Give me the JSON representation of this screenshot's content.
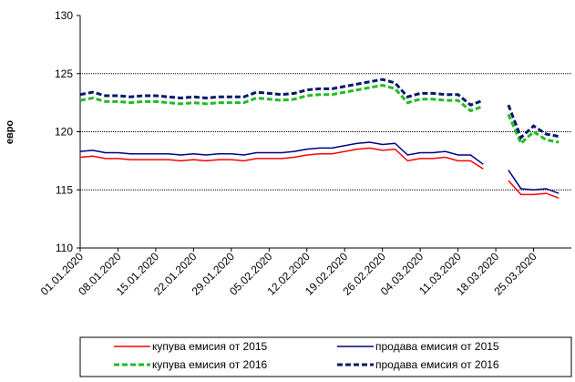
{
  "chart_data": {
    "type": "line",
    "y_label": "евро",
    "categories": [
      "01.01.2020",
      null,
      null,
      "08.01.2020",
      null,
      null,
      "15.01.2020",
      null,
      null,
      "22.01.2020",
      null,
      null,
      "29.01.2020",
      null,
      null,
      "05.02.2020",
      null,
      null,
      "12.02.2020",
      null,
      null,
      "19.02.2020",
      null,
      null,
      "26.02.2020",
      null,
      null,
      "04.03.2020",
      null,
      null,
      "11.03.2020",
      null,
      null,
      "18.03.2020",
      null,
      null,
      "25.03.2020",
      null,
      null
    ],
    "series": [
      {
        "name": "купува емисия от 2015",
        "color": "#ff0000",
        "dashed": false,
        "values": [
          117.8,
          117.9,
          117.7,
          117.7,
          117.6,
          117.6,
          117.6,
          117.6,
          117.5,
          117.6,
          117.5,
          117.6,
          117.6,
          117.5,
          117.7,
          117.7,
          117.7,
          117.8,
          118.0,
          118.1,
          118.1,
          118.3,
          118.5,
          118.6,
          118.4,
          118.5,
          117.5,
          117.7,
          117.7,
          117.8,
          117.5,
          117.5,
          116.8,
          null,
          115.8,
          114.6,
          114.6,
          114.7,
          114.3
        ]
      },
      {
        "name": "продава емисия от 2015",
        "color": "#000080",
        "dashed": false,
        "values": [
          118.3,
          118.4,
          118.2,
          118.2,
          118.1,
          118.1,
          118.1,
          118.1,
          118.0,
          118.1,
          118.0,
          118.1,
          118.1,
          118.0,
          118.2,
          118.2,
          118.2,
          118.3,
          118.5,
          118.6,
          118.6,
          118.8,
          119.0,
          119.1,
          118.9,
          119.0,
          118.0,
          118.2,
          118.2,
          118.3,
          118.0,
          118.0,
          117.2,
          null,
          116.7,
          115.1,
          115.0,
          115.1,
          114.7
        ]
      },
      {
        "name": "купува емисия от 2016",
        "color": "#22bb22",
        "dashed": true,
        "values": [
          122.7,
          122.9,
          122.6,
          122.6,
          122.5,
          122.6,
          122.6,
          122.5,
          122.4,
          122.5,
          122.4,
          122.5,
          122.5,
          122.5,
          122.9,
          122.8,
          122.7,
          122.8,
          123.1,
          123.2,
          123.2,
          123.4,
          123.6,
          123.8,
          124.0,
          123.7,
          122.5,
          122.8,
          122.8,
          122.7,
          122.7,
          121.8,
          122.2,
          null,
          121.5,
          119.0,
          120.0,
          119.3,
          119.1
        ]
      },
      {
        "name": "продава емисия от 2016",
        "color": "#001a66",
        "dashed": true,
        "values": [
          123.2,
          123.4,
          123.1,
          123.1,
          123.0,
          123.1,
          123.1,
          123.0,
          122.9,
          123.0,
          122.9,
          123.0,
          123.0,
          123.0,
          123.4,
          123.3,
          123.2,
          123.3,
          123.6,
          123.7,
          123.7,
          123.9,
          124.1,
          124.3,
          124.5,
          124.2,
          123.0,
          123.3,
          123.3,
          123.2,
          123.2,
          122.3,
          122.7,
          null,
          122.3,
          119.5,
          120.5,
          119.8,
          119.6
        ]
      }
    ],
    "ylim": [
      110,
      130
    ],
    "yticks": [
      110,
      115,
      120,
      125,
      130
    ],
    "grid": true
  }
}
